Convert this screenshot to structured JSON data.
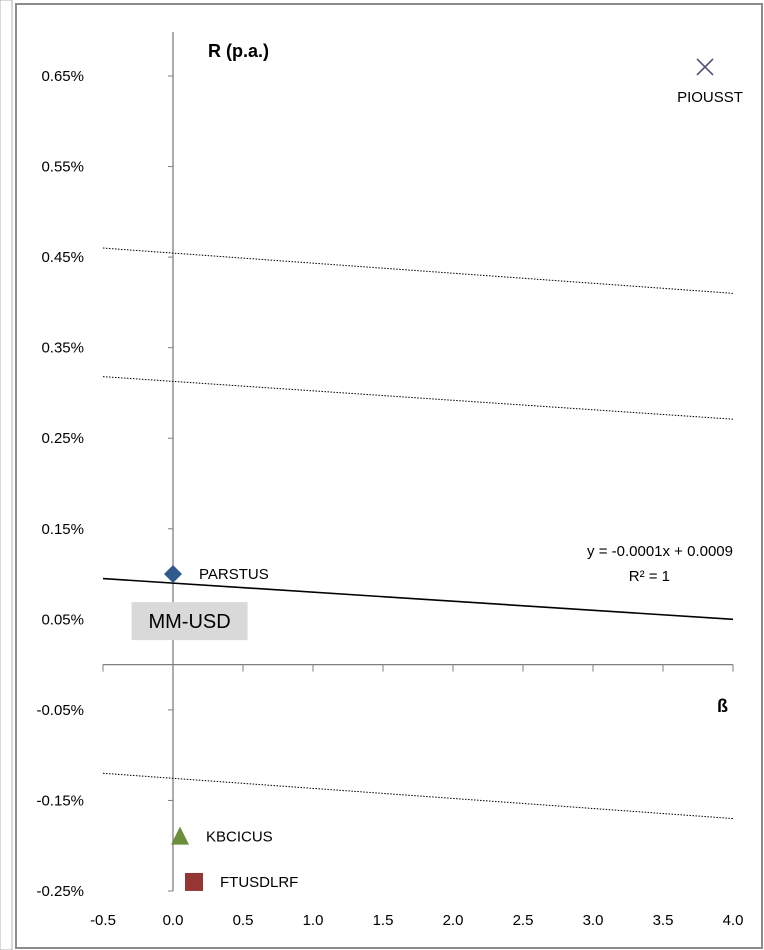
{
  "chart_data": {
    "type": "scatter",
    "title": "",
    "ylabel": "R (p.a.)",
    "xlabel": "ß",
    "xlim": [
      -0.5,
      4.0
    ],
    "ylim": [
      -0.25,
      0.65
    ],
    "x_ticks": [
      "-0.5",
      "0.0",
      "0.5",
      "1.0",
      "1.5",
      "2.0",
      "2.5",
      "3.0",
      "3.5",
      "4.0"
    ],
    "y_ticks": [
      "0.65%",
      "0.55%",
      "0.45%",
      "0.35%",
      "0.25%",
      "0.15%",
      "0.05%",
      "-0.05%",
      "-0.15%",
      "-0.25%"
    ],
    "grid": false,
    "points": [
      {
        "name": "PARSTUS",
        "x": 0.0,
        "y": 0.1,
        "marker": "diamond",
        "color": "#2e5b8c"
      },
      {
        "name": "PIOUSST",
        "x": 3.8,
        "y": 0.66,
        "marker": "x",
        "color": "#5a4a78"
      },
      {
        "name": "KBCICUS",
        "x": 0.05,
        "y": -0.19,
        "marker": "triangle",
        "color": "#6b8e3a"
      },
      {
        "name": "FTUSDLRF",
        "x": 0.15,
        "y": -0.24,
        "marker": "square",
        "color": "#943634"
      }
    ],
    "trendline": {
      "equation": "y = -0.0001x + 0.0009",
      "r_squared": "R² = 1",
      "start": [
        -0.5,
        0.095
      ],
      "end": [
        4.0,
        0.05
      ]
    },
    "dotted_lines": [
      {
        "start": [
          -0.5,
          0.46
        ],
        "end": [
          4.0,
          0.41
        ]
      },
      {
        "start": [
          -0.5,
          0.318
        ],
        "end": [
          4.0,
          0.271
        ]
      },
      {
        "start": [
          -0.5,
          -0.12
        ],
        "end": [
          4.0,
          -0.17
        ]
      }
    ],
    "annotation": {
      "text": "MM-USD",
      "x": 0.04,
      "y": 0.048,
      "background": "#d9d9d9"
    }
  }
}
